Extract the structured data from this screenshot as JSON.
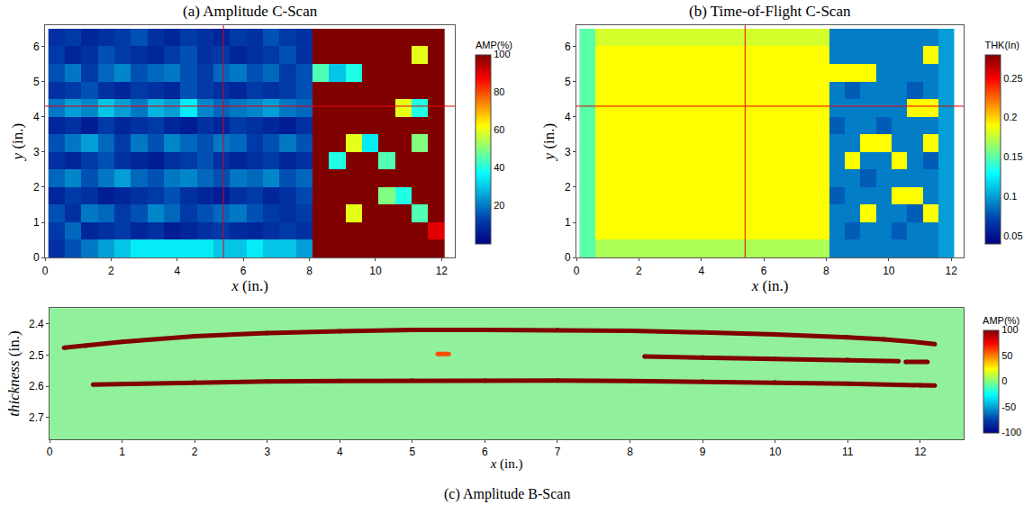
{
  "chart_data": [
    {
      "type": "heatmap",
      "title": "(a) Amplitude C-Scan",
      "x_label": "x (in.)",
      "y_label": "y (in.)",
      "x": [
        0.35,
        0.85,
        1.35,
        1.85,
        2.35,
        2.85,
        3.35,
        3.85,
        4.35,
        4.85,
        5.35,
        5.85,
        6.35,
        6.85,
        7.35,
        7.85,
        8.35,
        8.85,
        9.35,
        9.85,
        10.35,
        10.85,
        11.35,
        11.85
      ],
      "y": [
        0.25,
        0.75,
        1.25,
        1.75,
        2.25,
        2.75,
        3.25,
        3.75,
        4.25,
        4.75,
        5.25,
        5.75,
        6.25
      ],
      "z": [
        [
          10,
          15,
          20,
          25,
          30,
          35,
          35,
          35,
          35,
          35,
          30,
          30,
          35,
          30,
          30,
          25,
          100,
          100,
          100,
          100,
          100,
          100,
          100,
          100
        ],
        [
          12,
          18,
          8,
          10,
          12,
          8,
          10,
          6,
          8,
          10,
          12,
          9,
          8,
          10,
          12,
          10,
          100,
          100,
          100,
          100,
          100,
          100,
          100,
          90
        ],
        [
          15,
          10,
          20,
          18,
          12,
          15,
          22,
          18,
          12,
          15,
          18,
          20,
          15,
          12,
          10,
          12,
          100,
          100,
          60,
          100,
          100,
          100,
          45,
          100
        ],
        [
          8,
          12,
          10,
          6,
          8,
          10,
          12,
          15,
          10,
          8,
          6,
          10,
          12,
          8,
          10,
          14,
          100,
          100,
          100,
          100,
          50,
          40,
          100,
          100
        ],
        [
          18,
          22,
          15,
          20,
          25,
          18,
          15,
          20,
          22,
          18,
          15,
          20,
          18,
          22,
          15,
          18,
          100,
          100,
          100,
          100,
          100,
          100,
          100,
          100
        ],
        [
          10,
          8,
          12,
          15,
          10,
          8,
          6,
          10,
          12,
          15,
          10,
          8,
          10,
          12,
          8,
          10,
          100,
          40,
          100,
          100,
          45,
          100,
          100,
          100
        ],
        [
          15,
          20,
          25,
          18,
          12,
          20,
          15,
          22,
          18,
          15,
          20,
          18,
          12,
          15,
          20,
          15,
          100,
          100,
          60,
          35,
          100,
          100,
          50,
          100
        ],
        [
          8,
          10,
          6,
          12,
          8,
          10,
          12,
          8,
          6,
          10,
          8,
          12,
          10,
          8,
          6,
          10,
          100,
          100,
          100,
          100,
          100,
          100,
          100,
          100
        ],
        [
          20,
          25,
          22,
          30,
          25,
          20,
          28,
          25,
          35,
          22,
          18,
          20,
          22,
          25,
          20,
          18,
          100,
          100,
          100,
          100,
          100,
          60,
          40,
          100
        ],
        [
          10,
          12,
          15,
          10,
          8,
          12,
          10,
          8,
          15,
          12,
          10,
          8,
          12,
          10,
          12,
          15,
          100,
          100,
          100,
          100,
          100,
          100,
          100,
          100
        ],
        [
          15,
          20,
          12,
          18,
          22,
          15,
          18,
          20,
          15,
          12,
          18,
          20,
          15,
          18,
          12,
          15,
          45,
          30,
          40,
          100,
          100,
          100,
          100,
          100
        ],
        [
          12,
          8,
          10,
          15,
          12,
          10,
          8,
          12,
          15,
          10,
          12,
          8,
          10,
          12,
          15,
          10,
          100,
          100,
          100,
          100,
          100,
          100,
          60,
          100
        ],
        [
          10,
          12,
          8,
          10,
          12,
          15,
          10,
          8,
          12,
          10,
          8,
          12,
          10,
          15,
          12,
          10,
          100,
          100,
          100,
          100,
          100,
          100,
          100,
          100
        ]
      ],
      "xlim": [
        0,
        12.4
      ],
      "ylim": [
        0,
        6.6
      ],
      "xticks": [
        0,
        2,
        4,
        6,
        8,
        10,
        12
      ],
      "yticks": [
        0,
        1,
        2,
        3,
        4,
        5,
        6
      ],
      "colorbar": {
        "title": "AMP(%)",
        "range": [
          0,
          100
        ],
        "ticks": [
          20,
          40,
          60,
          80,
          100
        ]
      },
      "cursor": {
        "x": 5.4,
        "y": 4.3
      }
    },
    {
      "type": "heatmap",
      "title": "(b) Time-of-Flight C-Scan",
      "x_label": "x (in.)",
      "y_label": "y (in.)",
      "x": [
        0.35,
        0.85,
        1.35,
        1.85,
        2.35,
        2.85,
        3.35,
        3.85,
        4.35,
        4.85,
        5.35,
        5.85,
        6.35,
        6.85,
        7.35,
        7.85,
        8.35,
        8.85,
        9.35,
        9.85,
        10.35,
        10.85,
        11.35,
        11.85
      ],
      "y": [
        0.25,
        0.75,
        1.25,
        1.75,
        2.25,
        2.75,
        3.25,
        3.75,
        4.25,
        4.75,
        5.25,
        5.75,
        6.25
      ],
      "z": [
        [
          0.15,
          0.17,
          0.17,
          0.17,
          0.17,
          0.17,
          0.17,
          0.17,
          0.17,
          0.17,
          0.17,
          0.17,
          0.17,
          0.17,
          0.17,
          0.17,
          0.09,
          0.09,
          0.09,
          0.09,
          0.09,
          0.09,
          0.09,
          0.1
        ],
        [
          0.15,
          0.19,
          0.19,
          0.19,
          0.19,
          0.19,
          0.19,
          0.19,
          0.19,
          0.19,
          0.19,
          0.19,
          0.19,
          0.19,
          0.19,
          0.19,
          0.09,
          0.08,
          0.09,
          0.09,
          0.08,
          0.09,
          0.09,
          0.1
        ],
        [
          0.15,
          0.19,
          0.19,
          0.19,
          0.19,
          0.19,
          0.19,
          0.19,
          0.19,
          0.19,
          0.19,
          0.19,
          0.19,
          0.19,
          0.19,
          0.19,
          0.09,
          0.09,
          0.19,
          0.09,
          0.09,
          0.08,
          0.19,
          0.1
        ],
        [
          0.15,
          0.19,
          0.19,
          0.19,
          0.19,
          0.19,
          0.19,
          0.19,
          0.19,
          0.19,
          0.19,
          0.19,
          0.19,
          0.19,
          0.19,
          0.19,
          0.08,
          0.09,
          0.09,
          0.09,
          0.19,
          0.19,
          0.09,
          0.1
        ],
        [
          0.15,
          0.19,
          0.19,
          0.19,
          0.19,
          0.19,
          0.19,
          0.19,
          0.19,
          0.19,
          0.19,
          0.19,
          0.19,
          0.19,
          0.19,
          0.19,
          0.09,
          0.09,
          0.08,
          0.09,
          0.09,
          0.09,
          0.09,
          0.1
        ],
        [
          0.15,
          0.19,
          0.19,
          0.19,
          0.19,
          0.19,
          0.19,
          0.19,
          0.19,
          0.19,
          0.19,
          0.19,
          0.19,
          0.19,
          0.19,
          0.19,
          0.09,
          0.19,
          0.09,
          0.09,
          0.19,
          0.09,
          0.08,
          0.1
        ],
        [
          0.15,
          0.19,
          0.19,
          0.19,
          0.19,
          0.19,
          0.19,
          0.19,
          0.19,
          0.19,
          0.19,
          0.19,
          0.19,
          0.19,
          0.19,
          0.19,
          0.09,
          0.09,
          0.19,
          0.19,
          0.09,
          0.09,
          0.19,
          0.1
        ],
        [
          0.15,
          0.19,
          0.19,
          0.19,
          0.19,
          0.19,
          0.19,
          0.19,
          0.19,
          0.19,
          0.19,
          0.19,
          0.19,
          0.19,
          0.19,
          0.19,
          0.08,
          0.09,
          0.09,
          0.08,
          0.09,
          0.09,
          0.09,
          0.1
        ],
        [
          0.15,
          0.19,
          0.19,
          0.19,
          0.19,
          0.19,
          0.19,
          0.19,
          0.19,
          0.19,
          0.19,
          0.19,
          0.19,
          0.19,
          0.19,
          0.19,
          0.09,
          0.09,
          0.09,
          0.09,
          0.09,
          0.19,
          0.19,
          0.1
        ],
        [
          0.15,
          0.19,
          0.19,
          0.19,
          0.19,
          0.19,
          0.19,
          0.19,
          0.19,
          0.19,
          0.19,
          0.19,
          0.19,
          0.19,
          0.19,
          0.19,
          0.09,
          0.08,
          0.09,
          0.09,
          0.09,
          0.08,
          0.09,
          0.1
        ],
        [
          0.15,
          0.19,
          0.19,
          0.19,
          0.19,
          0.19,
          0.19,
          0.19,
          0.19,
          0.19,
          0.19,
          0.19,
          0.19,
          0.19,
          0.19,
          0.19,
          0.19,
          0.19,
          0.19,
          0.09,
          0.09,
          0.09,
          0.09,
          0.1
        ],
        [
          0.15,
          0.19,
          0.19,
          0.19,
          0.19,
          0.19,
          0.19,
          0.19,
          0.19,
          0.19,
          0.19,
          0.19,
          0.19,
          0.19,
          0.19,
          0.19,
          0.09,
          0.09,
          0.09,
          0.09,
          0.09,
          0.09,
          0.19,
          0.1
        ],
        [
          0.15,
          0.18,
          0.18,
          0.18,
          0.18,
          0.18,
          0.18,
          0.18,
          0.18,
          0.18,
          0.18,
          0.18,
          0.18,
          0.18,
          0.18,
          0.18,
          0.09,
          0.09,
          0.09,
          0.09,
          0.09,
          0.09,
          0.09,
          0.1
        ]
      ],
      "xlim": [
        0,
        12.4
      ],
      "ylim": [
        0,
        6.6
      ],
      "xticks": [
        0,
        2,
        4,
        6,
        8,
        10,
        12
      ],
      "yticks": [
        0,
        1,
        2,
        3,
        4,
        5,
        6
      ],
      "colorbar": {
        "title": "THK(In)",
        "range": [
          0.04,
          0.28
        ],
        "ticks": [
          0.05,
          0.1,
          0.15,
          0.2,
          0.25
        ]
      },
      "cursor": {
        "x": 5.4,
        "y": 4.3
      }
    },
    {
      "type": "line",
      "title": "(c) Amplitude B-Scan",
      "x_label": "x (in.)",
      "y_label": "thickness (in.)",
      "series": [
        {
          "x": [
            0.2,
            0.5,
            1,
            2,
            3,
            4,
            5,
            6,
            7,
            8,
            9,
            10,
            11,
            11.5,
            12,
            12.2
          ],
          "values": [
            2.477,
            2.47,
            2.458,
            2.44,
            2.43,
            2.424,
            2.42,
            2.42,
            2.42,
            2.423,
            2.428,
            2.434,
            2.444,
            2.45,
            2.46,
            2.465
          ],
          "amplitude": 100
        },
        {
          "x": [
            0.6,
            1,
            2,
            3,
            4,
            5,
            6,
            7,
            8,
            9,
            10,
            11,
            12,
            12.2
          ],
          "values": [
            2.595,
            2.593,
            2.588,
            2.585,
            2.583,
            2.582,
            2.582,
            2.582,
            2.583,
            2.585,
            2.588,
            2.592,
            2.597,
            2.598
          ],
          "amplitude": 100
        },
        {
          "x": [
            8.2,
            9,
            10,
            11,
            11.7
          ],
          "values": [
            2.505,
            2.508,
            2.512,
            2.516,
            2.52
          ],
          "amplitude": 100
        },
        {
          "x": [
            11.8,
            12.1
          ],
          "values": [
            2.522,
            2.522
          ],
          "amplitude": 100
        },
        {
          "x": [
            5.35,
            5.5
          ],
          "values": [
            2.497,
            2.497
          ],
          "amplitude": 60
        }
      ],
      "xlim": [
        0,
        12.6
      ],
      "ylim": [
        2.35,
        2.77
      ],
      "xticks": [
        0,
        1,
        2,
        3,
        4,
        5,
        6,
        7,
        8,
        9,
        10,
        11,
        12
      ],
      "yticks": [
        2.4,
        2.5,
        2.6,
        2.7
      ],
      "colorbar": {
        "title": "AMP(%)",
        "range": [
          -100,
          100
        ],
        "ticks": [
          -100,
          -50,
          0,
          50,
          100
        ]
      }
    }
  ]
}
